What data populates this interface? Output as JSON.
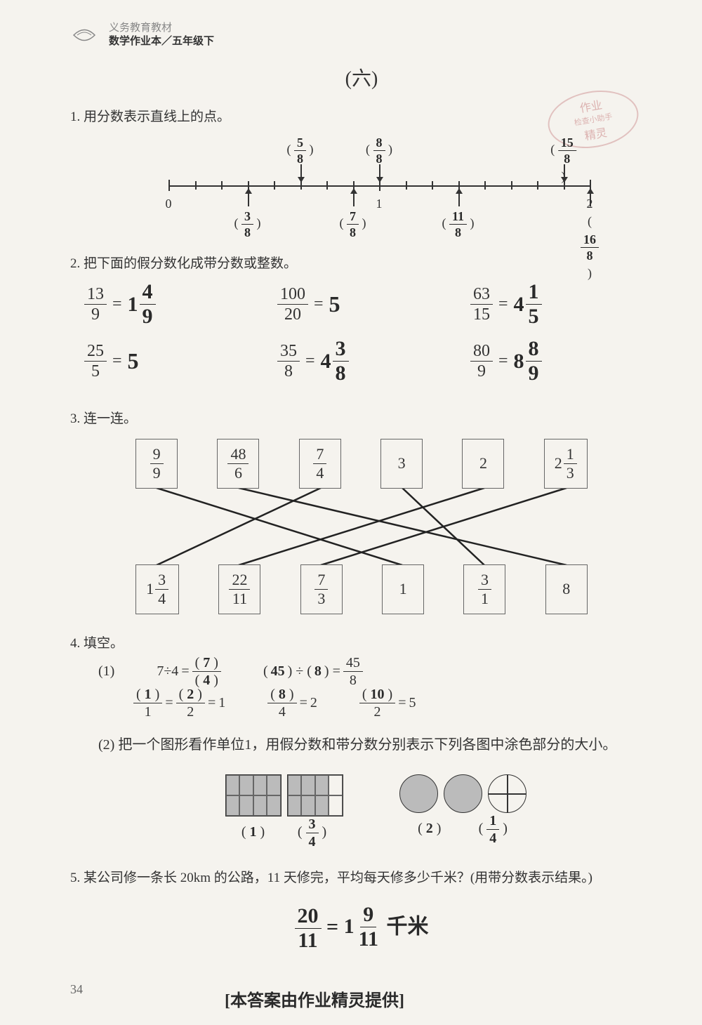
{
  "header": {
    "line1": "义务教育教材",
    "line2": "数学作业本／五年级下"
  },
  "section_title": "(六)",
  "watermark": {
    "line1": "作业",
    "line2": "检查小助手",
    "line3": "精灵"
  },
  "p1": {
    "text": "1. 用分数表示直线上的点。",
    "number_line": {
      "axis_start": 0,
      "axis_end": 2,
      "major_ticks": [
        0,
        1,
        2
      ],
      "top_points": [
        {
          "pos": 0.625,
          "label_num": "5",
          "label_den": "8"
        },
        {
          "pos": 1.0,
          "label_num": "8",
          "label_den": "8"
        },
        {
          "pos": 1.875,
          "label_num": "15",
          "label_den": "8"
        }
      ],
      "bottom_points": [
        {
          "pos": 0.375,
          "label_num": "3",
          "label_den": "8"
        },
        {
          "pos": 0.875,
          "label_num": "7",
          "label_den": "8"
        },
        {
          "pos": 1.375,
          "label_num": "11",
          "label_den": "8"
        },
        {
          "pos": 2.0,
          "label_num": "16",
          "label_den": "8"
        }
      ]
    }
  },
  "p2": {
    "text": "2. 把下面的假分数化成带分数或整数。",
    "equations": [
      [
        {
          "frac_n": "13",
          "frac_d": "9",
          "ans_whole": "1",
          "ans_n": "4",
          "ans_d": "9"
        },
        {
          "frac_n": "100",
          "frac_d": "20",
          "ans_int": "5"
        },
        {
          "frac_n": "63",
          "frac_d": "15",
          "ans_whole": "4",
          "ans_n": "1",
          "ans_d": "5"
        }
      ],
      [
        {
          "frac_n": "25",
          "frac_d": "5",
          "ans_int": "5"
        },
        {
          "frac_n": "35",
          "frac_d": "8",
          "ans_whole": "4",
          "ans_n": "3",
          "ans_d": "8"
        },
        {
          "frac_n": "80",
          "frac_d": "9",
          "ans_whole": "8",
          "ans_n": "8",
          "ans_d": "9"
        }
      ]
    ]
  },
  "p3": {
    "text": "3. 连一连。",
    "top_boxes": [
      {
        "type": "frac",
        "n": "9",
        "d": "9"
      },
      {
        "type": "frac",
        "n": "48",
        "d": "6"
      },
      {
        "type": "frac",
        "n": "7",
        "d": "4"
      },
      {
        "type": "int",
        "v": "3"
      },
      {
        "type": "int",
        "v": "2"
      },
      {
        "type": "mixed",
        "w": "2",
        "n": "1",
        "d": "3"
      }
    ],
    "bottom_boxes": [
      {
        "type": "mixed",
        "w": "1",
        "n": "3",
        "d": "4"
      },
      {
        "type": "frac",
        "n": "22",
        "d": "11"
      },
      {
        "type": "frac",
        "n": "7",
        "d": "3"
      },
      {
        "type": "int",
        "v": "1"
      },
      {
        "type": "frac",
        "n": "3",
        "d": "1"
      },
      {
        "type": "int",
        "v": "8"
      }
    ],
    "connections": [
      [
        0,
        3
      ],
      [
        1,
        5
      ],
      [
        2,
        0
      ],
      [
        3,
        4
      ],
      [
        4,
        1
      ],
      [
        5,
        2
      ]
    ]
  },
  "p4": {
    "text": "4. 填空。",
    "part1_label": "(1)",
    "row1a": {
      "lhs": "7÷4",
      "ans_n": "7",
      "ans_d": "4"
    },
    "row1b": {
      "ans_a": "45",
      "ans_b": "8",
      "rhs_n": "45",
      "rhs_d": "8"
    },
    "row2a": {
      "d1": "1",
      "ans_n1": "1",
      "d2": "2",
      "ans_n2": "2",
      "rhs": "1"
    },
    "row2b": {
      "d": "4",
      "ans_n": "8",
      "rhs": "2"
    },
    "row2c": {
      "d": "2",
      "ans_n": "10",
      "rhs": "5"
    },
    "part2_label": "(2)",
    "part2_text": "把一个图形看作单位1，用假分数和带分数分别表示下列各图中涂色部分的大小。",
    "shape1_ans1": "1",
    "shape1_ans2_n": "3",
    "shape1_ans2_d": "4",
    "shape2_ans1": "2",
    "shape2_ans2_n": "1",
    "shape2_ans2_d": "4"
  },
  "p5": {
    "text": "5. 某公司修一条长 20km 的公路，11 天修完，平均每天修多少千米？(用带分数表示结果。)",
    "answer_n": "20",
    "answer_d": "11",
    "answer_mixed_w": "1",
    "answer_mixed_n": "9",
    "answer_mixed_d": "11",
    "answer_unit": "千米"
  },
  "page_number": "34",
  "footer": "[本答案由作业精灵提供]",
  "colors": {
    "bg": "#f5f3ee",
    "text": "#333333",
    "handwritten": "#2a2a2a",
    "watermark": "#cc8888"
  }
}
